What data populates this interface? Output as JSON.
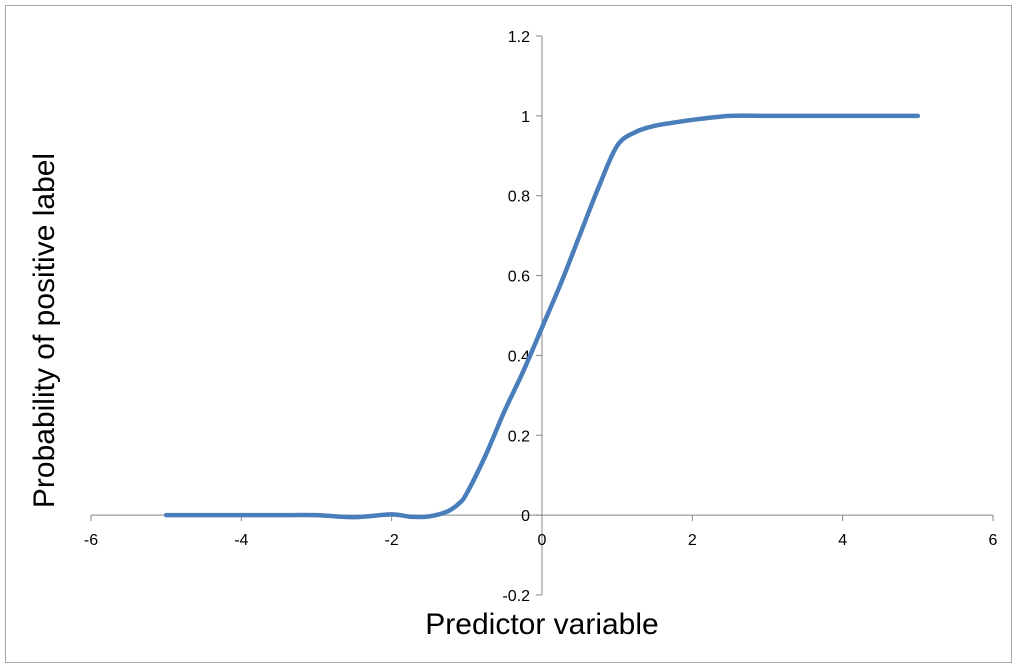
{
  "chart_data": {
    "type": "line",
    "title": "",
    "xlabel": "Predictor variable",
    "ylabel": "Probability of positive label",
    "xlim": [
      -6,
      6
    ],
    "ylim": [
      -0.2,
      1.2
    ],
    "x_ticks": [
      -6,
      -4,
      -2,
      0,
      2,
      4,
      6
    ],
    "y_ticks": [
      -0.2,
      0,
      0.2,
      0.4,
      0.6,
      0.8,
      1,
      1.2
    ],
    "x_tick_labels": [
      "-6",
      "-4",
      "-2",
      "0",
      "2",
      "4",
      "6"
    ],
    "y_tick_labels": [
      "-0.2",
      "0",
      "0.2",
      "0.4",
      "0.6",
      "0.8",
      "1",
      "1.2"
    ],
    "grid": false,
    "legend": "none",
    "series": [
      {
        "color": "#4a7ebb",
        "x": [
          -5,
          -4.5,
          -4,
          -3.5,
          -3,
          -2.5,
          -2,
          -1.75,
          -1.5,
          -1.25,
          -1.1,
          -1,
          -0.75,
          -0.5,
          -0.25,
          0,
          0.25,
          0.5,
          0.75,
          1,
          1.25,
          1.5,
          1.75,
          2,
          2.5,
          3,
          3.5,
          4,
          4.5,
          5
        ],
        "y": [
          0,
          0,
          0,
          0,
          0,
          -0.005,
          0.002,
          -0.004,
          -0.003,
          0.01,
          0.03,
          0.055,
          0.15,
          0.26,
          0.36,
          0.47,
          0.58,
          0.7,
          0.82,
          0.925,
          0.96,
          0.975,
          0.983,
          0.99,
          1,
          1,
          1,
          1,
          1,
          1
        ]
      }
    ]
  }
}
